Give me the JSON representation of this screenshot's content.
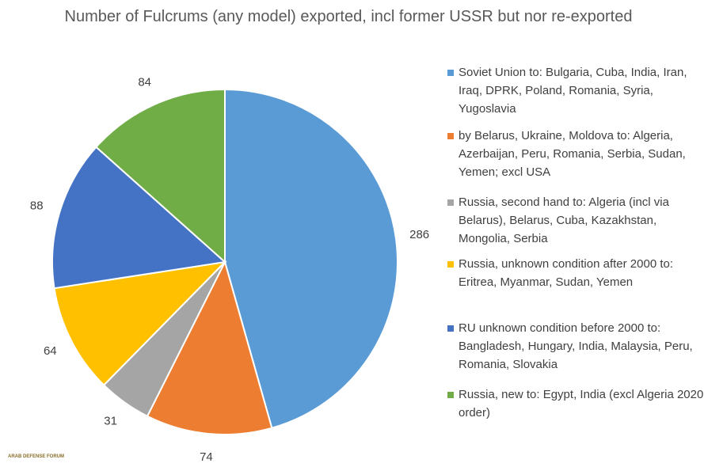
{
  "chart_data": {
    "type": "pie",
    "title": "Number of Fulcrums (any model) exported, incl former USSR but nor re-exported",
    "categories": [
      "Soviet Union to: Bulgaria, Cuba, India, Iran, Iraq, DPRK, Poland, Romania, Syria, Yugoslavia",
      "by Belarus, Ukraine, Moldova to: Algeria, Azerbaijan, Peru, Romania, Serbia, Sudan, Yemen; excl USA",
      "Russia, second hand to: Algeria (incl via Belarus), Belarus, Cuba, Kazakhstan, Mongolia, Serbia",
      "Russia, unknown condition after 2000 to: Eritrea, Myanmar, Sudan, Yemen",
      "RU unknown condition before 2000 to: Bangladesh, Hungary, India, Malaysia, Peru, Romania, Slovakia",
      "Russia, new to: Egypt, India (excl Algeria 2020 order)"
    ],
    "values": [
      286,
      74,
      31,
      64,
      88,
      84
    ],
    "colors": [
      "#5b9bd5",
      "#ed7d31",
      "#a5a5a5",
      "#ffc000",
      "#4472c4",
      "#70ad47"
    ],
    "legend": "right"
  },
  "watermark": "ARAB DEFENSE FORUM"
}
